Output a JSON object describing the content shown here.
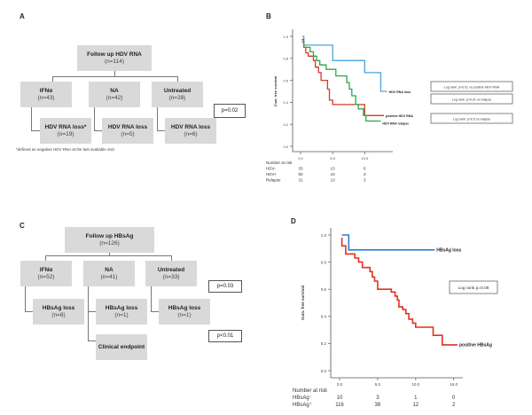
{
  "panels": {
    "A": {
      "label": "A",
      "root": {
        "title": "Follow up HDV RNA",
        "n": "(n=114)"
      },
      "groups": [
        {
          "title": "IFNα",
          "n": "(n=43)",
          "outcome_title": "HDV RNA loss*",
          "outcome_n": "(n=19)"
        },
        {
          "title": "NA",
          "n": "(n=42)",
          "outcome_title": "HDV RNA loss",
          "outcome_n": "(n=5)"
        },
        {
          "title": "Untreated",
          "n": "(n=28)",
          "outcome_title": "HDV RNA loss",
          "outcome_n": "(n=6)"
        }
      ],
      "p_value": "p=0.02",
      "footnote": "*defined as negative HDV RNA at the last available visit"
    },
    "B": {
      "label": "B"
    },
    "C": {
      "label": "C",
      "root": {
        "title": "Follow up HBsAg",
        "n": "(n=126)"
      },
      "groups": [
        {
          "title": "IFNα",
          "n": "(n=52)",
          "outcome_title": "HBsAg loss",
          "outcome_n": "(n=8)"
        },
        {
          "title": "NA",
          "n": "(n=41)",
          "outcome_title": "HBsAg loss",
          "outcome_n": "(n=1)"
        },
        {
          "title": "Untreated",
          "n": "(n=33)",
          "outcome_title": "HBsAg loss",
          "outcome_n": "(n=1)"
        }
      ],
      "extra_outcome": "Clinical endpoint",
      "p_values": [
        "p=0.03",
        "p<0.01"
      ]
    },
    "D": {
      "label": "D"
    }
  },
  "chart_data": [
    {
      "panel": "B",
      "type": "line",
      "step": true,
      "title": "",
      "xlabel": "",
      "ylabel": "Cum. free survival",
      "xlim": [
        0,
        13
      ],
      "ylim": [
        0,
        1.0
      ],
      "xticks": [
        "0.0",
        "5.0",
        "10.0"
      ],
      "xtick_values": [
        0,
        5,
        10
      ],
      "yticks": [
        "0.0",
        "0.2",
        "0.4",
        "0.6",
        "0.8",
        "1.0"
      ],
      "ytick_values": [
        0,
        0.2,
        0.4,
        0.6,
        0.8,
        1.0
      ],
      "grid": false,
      "series": [
        {
          "name": "HDV RNA loss",
          "color": "#4aa3df",
          "points": [
            [
              0.3,
              1.0
            ],
            [
              0.5,
              1.0
            ],
            [
              0.5,
              0.92
            ],
            [
              5.0,
              0.92
            ],
            [
              5.0,
              0.78
            ],
            [
              10.0,
              0.78
            ],
            [
              10.0,
              0.67
            ],
            [
              12.5,
              0.67
            ],
            [
              12.5,
              0.5
            ],
            [
              13.5,
              0.5
            ]
          ]
        },
        {
          "name": "positive HDV RNA",
          "color": "#d23a2a",
          "points": [
            [
              0.2,
              0.97
            ],
            [
              0.5,
              0.97
            ],
            [
              0.5,
              0.9
            ],
            [
              0.8,
              0.9
            ],
            [
              0.8,
              0.85
            ],
            [
              1.2,
              0.85
            ],
            [
              1.2,
              0.82
            ],
            [
              2.0,
              0.82
            ],
            [
              2.0,
              0.78
            ],
            [
              2.3,
              0.78
            ],
            [
              2.3,
              0.72
            ],
            [
              2.8,
              0.72
            ],
            [
              2.8,
              0.67
            ],
            [
              3.2,
              0.67
            ],
            [
              3.2,
              0.6
            ],
            [
              4.2,
              0.6
            ],
            [
              4.2,
              0.52
            ],
            [
              4.5,
              0.52
            ],
            [
              4.5,
              0.42
            ],
            [
              5.0,
              0.42
            ],
            [
              5.0,
              0.38
            ],
            [
              10.0,
              0.38
            ],
            [
              10.0,
              0.28
            ],
            [
              13.0,
              0.28
            ]
          ]
        },
        {
          "name": "HDV RNA relapse",
          "color": "#2aa84a",
          "points": [
            [
              0.2,
              0.95
            ],
            [
              0.5,
              0.95
            ],
            [
              0.5,
              0.9
            ],
            [
              1.5,
              0.9
            ],
            [
              1.5,
              0.86
            ],
            [
              2.0,
              0.86
            ],
            [
              2.0,
              0.82
            ],
            [
              2.5,
              0.82
            ],
            [
              2.5,
              0.78
            ],
            [
              3.0,
              0.78
            ],
            [
              3.0,
              0.74
            ],
            [
              4.0,
              0.74
            ],
            [
              4.0,
              0.7
            ],
            [
              5.5,
              0.7
            ],
            [
              5.5,
              0.64
            ],
            [
              7.2,
              0.64
            ],
            [
              7.2,
              0.58
            ],
            [
              7.6,
              0.58
            ],
            [
              7.6,
              0.52
            ],
            [
              8.0,
              0.52
            ],
            [
              8.0,
              0.46
            ],
            [
              8.6,
              0.46
            ],
            [
              8.6,
              0.38
            ],
            [
              9.0,
              0.38
            ],
            [
              9.0,
              0.34
            ],
            [
              9.8,
              0.34
            ],
            [
              9.8,
              0.28
            ],
            [
              10.2,
              0.28
            ],
            [
              10.2,
              0.23
            ],
            [
              12.5,
              0.23
            ]
          ]
        }
      ],
      "annotations": [
        "Log rank: p<0.01 vs positive HDV RNA",
        "Log rank: p<0.01 vs relapse",
        "Log rank: p=0.5 vs relapse"
      ],
      "risk_table": {
        "title": "Number at risk",
        "rows": [
          {
            "label": "HDV-",
            "values": [
              "33",
              "13",
              "6"
            ]
          },
          {
            "label": "HDV+",
            "values": [
              "50",
              "10",
              "3"
            ]
          },
          {
            "label": "Relapse",
            "values": [
              "31",
              "13",
              "3"
            ]
          }
        ]
      }
    },
    {
      "panel": "D",
      "type": "line",
      "step": true,
      "title": "",
      "xlabel": "",
      "ylabel": "Cum. free survival",
      "xlim": [
        0,
        15.5
      ],
      "ylim": [
        0,
        1.0
      ],
      "xticks": [
        "0.0",
        "5.0",
        "10.0",
        "15.0"
      ],
      "xtick_values": [
        0,
        5,
        10,
        15
      ],
      "yticks": [
        "0.0",
        "0.2",
        "0.4",
        "0.6",
        "0.8",
        "1.0"
      ],
      "ytick_values": [
        0,
        0.2,
        0.4,
        0.6,
        0.8,
        1.0
      ],
      "grid": false,
      "series": [
        {
          "name": "HBsAg loss",
          "color": "#2a7fd4",
          "points": [
            [
              0.3,
              1.0
            ],
            [
              1.2,
              1.0
            ],
            [
              1.2,
              0.89
            ],
            [
              12.5,
              0.89
            ]
          ]
        },
        {
          "name": "positive HBsAg",
          "color": "#e0321e",
          "points": [
            [
              0.3,
              0.98
            ],
            [
              0.3,
              0.92
            ],
            [
              0.8,
              0.92
            ],
            [
              0.8,
              0.86
            ],
            [
              2.0,
              0.86
            ],
            [
              2.0,
              0.83
            ],
            [
              2.5,
              0.83
            ],
            [
              2.5,
              0.8
            ],
            [
              3.0,
              0.8
            ],
            [
              3.0,
              0.76
            ],
            [
              4.0,
              0.76
            ],
            [
              4.0,
              0.73
            ],
            [
              4.3,
              0.73
            ],
            [
              4.3,
              0.69
            ],
            [
              4.6,
              0.69
            ],
            [
              4.6,
              0.66
            ],
            [
              5.0,
              0.66
            ],
            [
              5.0,
              0.6
            ],
            [
              6.8,
              0.6
            ],
            [
              6.8,
              0.58
            ],
            [
              7.3,
              0.58
            ],
            [
              7.3,
              0.55
            ],
            [
              7.6,
              0.55
            ],
            [
              7.6,
              0.52
            ],
            [
              7.8,
              0.52
            ],
            [
              7.8,
              0.47
            ],
            [
              8.3,
              0.47
            ],
            [
              8.3,
              0.45
            ],
            [
              8.7,
              0.45
            ],
            [
              8.7,
              0.42
            ],
            [
              9.1,
              0.42
            ],
            [
              9.1,
              0.38
            ],
            [
              9.6,
              0.38
            ],
            [
              9.6,
              0.35
            ],
            [
              10.0,
              0.35
            ],
            [
              10.0,
              0.32
            ],
            [
              12.3,
              0.32
            ],
            [
              12.3,
              0.26
            ],
            [
              13.5,
              0.26
            ],
            [
              13.5,
              0.19
            ],
            [
              15.5,
              0.19
            ]
          ]
        }
      ],
      "annotations": [
        "Log rank p=0.08"
      ],
      "risk_table": {
        "title": "Number at risk",
        "rows": [
          {
            "label": "HBsAg⁻",
            "values": [
              "10",
              "3",
              "1",
              "0"
            ]
          },
          {
            "label": "HBsAg⁺",
            "values": [
              "116",
              "38",
              "12",
              "2"
            ]
          }
        ]
      }
    }
  ]
}
